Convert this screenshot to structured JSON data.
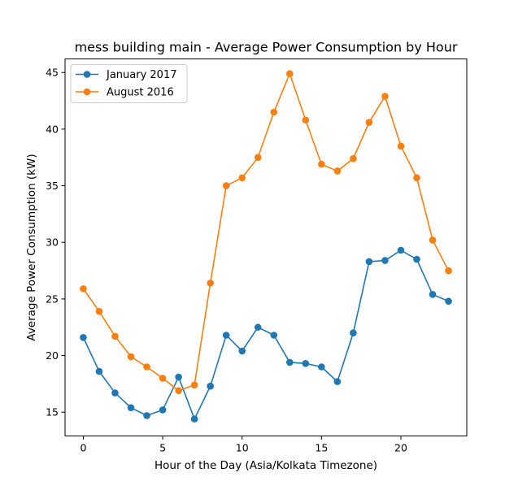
{
  "chart_data": {
    "type": "line",
    "title": "mess building main - Average Power Consumption by Hour",
    "xlabel": "Hour of the Day (Asia/Kolkata Timezone)",
    "ylabel": "Average Power Consumption (kW)",
    "xlim": [
      -1.15,
      24.15
    ],
    "ylim": [
      12.9,
      46.2
    ],
    "xticks": [
      0,
      5,
      10,
      15,
      20
    ],
    "yticks": [
      15,
      20,
      25,
      30,
      35,
      40,
      45
    ],
    "grid": false,
    "legend_position": "top-left",
    "x": [
      0,
      1,
      2,
      3,
      4,
      5,
      6,
      7,
      8,
      9,
      10,
      11,
      12,
      13,
      14,
      15,
      16,
      17,
      18,
      19,
      20,
      21,
      22,
      23
    ],
    "series": [
      {
        "name": "January 2017",
        "color": "#1f77b4",
        "values": [
          21.6,
          18.6,
          16.7,
          15.4,
          14.7,
          15.2,
          18.1,
          14.4,
          17.3,
          21.8,
          20.4,
          22.5,
          21.8,
          19.4,
          19.3,
          19.0,
          17.7,
          22.0,
          28.3,
          28.4,
          29.3,
          28.5,
          25.4,
          24.8
        ]
      },
      {
        "name": "August 2016",
        "color": "#ff7f0e",
        "values": [
          25.9,
          23.9,
          21.7,
          19.9,
          19.0,
          18.0,
          16.9,
          17.4,
          26.4,
          35.0,
          35.7,
          37.5,
          41.5,
          44.9,
          40.8,
          36.9,
          36.3,
          37.4,
          40.6,
          42.9,
          38.5,
          35.7,
          30.2,
          27.5
        ]
      }
    ]
  }
}
